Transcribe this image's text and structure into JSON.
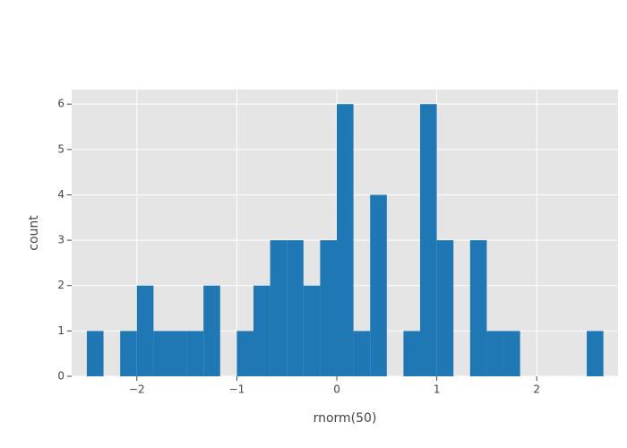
{
  "chart_data": {
    "type": "histogram",
    "x_label": "rnorm(50)",
    "y_label": "count",
    "bins": [
      -2.5,
      -2.3333,
      -2.1667,
      -2.0,
      -1.8333,
      -1.6667,
      -1.5,
      -1.3333,
      -1.1667,
      -1.0,
      -0.8333,
      -0.6667,
      -0.5,
      -0.3333,
      -0.1667,
      0.0,
      0.1667,
      0.3333,
      0.5,
      0.6667,
      0.8333,
      1.0,
      1.1667,
      1.3333,
      1.5,
      1.6667,
      1.8333,
      2.0,
      2.1667,
      2.3333,
      2.5,
      2.6667
    ],
    "values": [
      1,
      0,
      1,
      2,
      1,
      1,
      1,
      2,
      0,
      1,
      2,
      3,
      3,
      2,
      3,
      6,
      1,
      4,
      0,
      1,
      6,
      3,
      0,
      3,
      1,
      1,
      0,
      0,
      0,
      0,
      1
    ],
    "color": "#1f77b4",
    "xlim": [
      -2.652,
      2.813
    ],
    "ylim": [
      0,
      6.32
    ],
    "xticks": [
      {
        "value": -2,
        "label": "−2"
      },
      {
        "value": -1,
        "label": "−1"
      },
      0,
      1,
      2
    ],
    "yticks": [
      0,
      1,
      2,
      3,
      4,
      5,
      6
    ],
    "grid": true
  }
}
